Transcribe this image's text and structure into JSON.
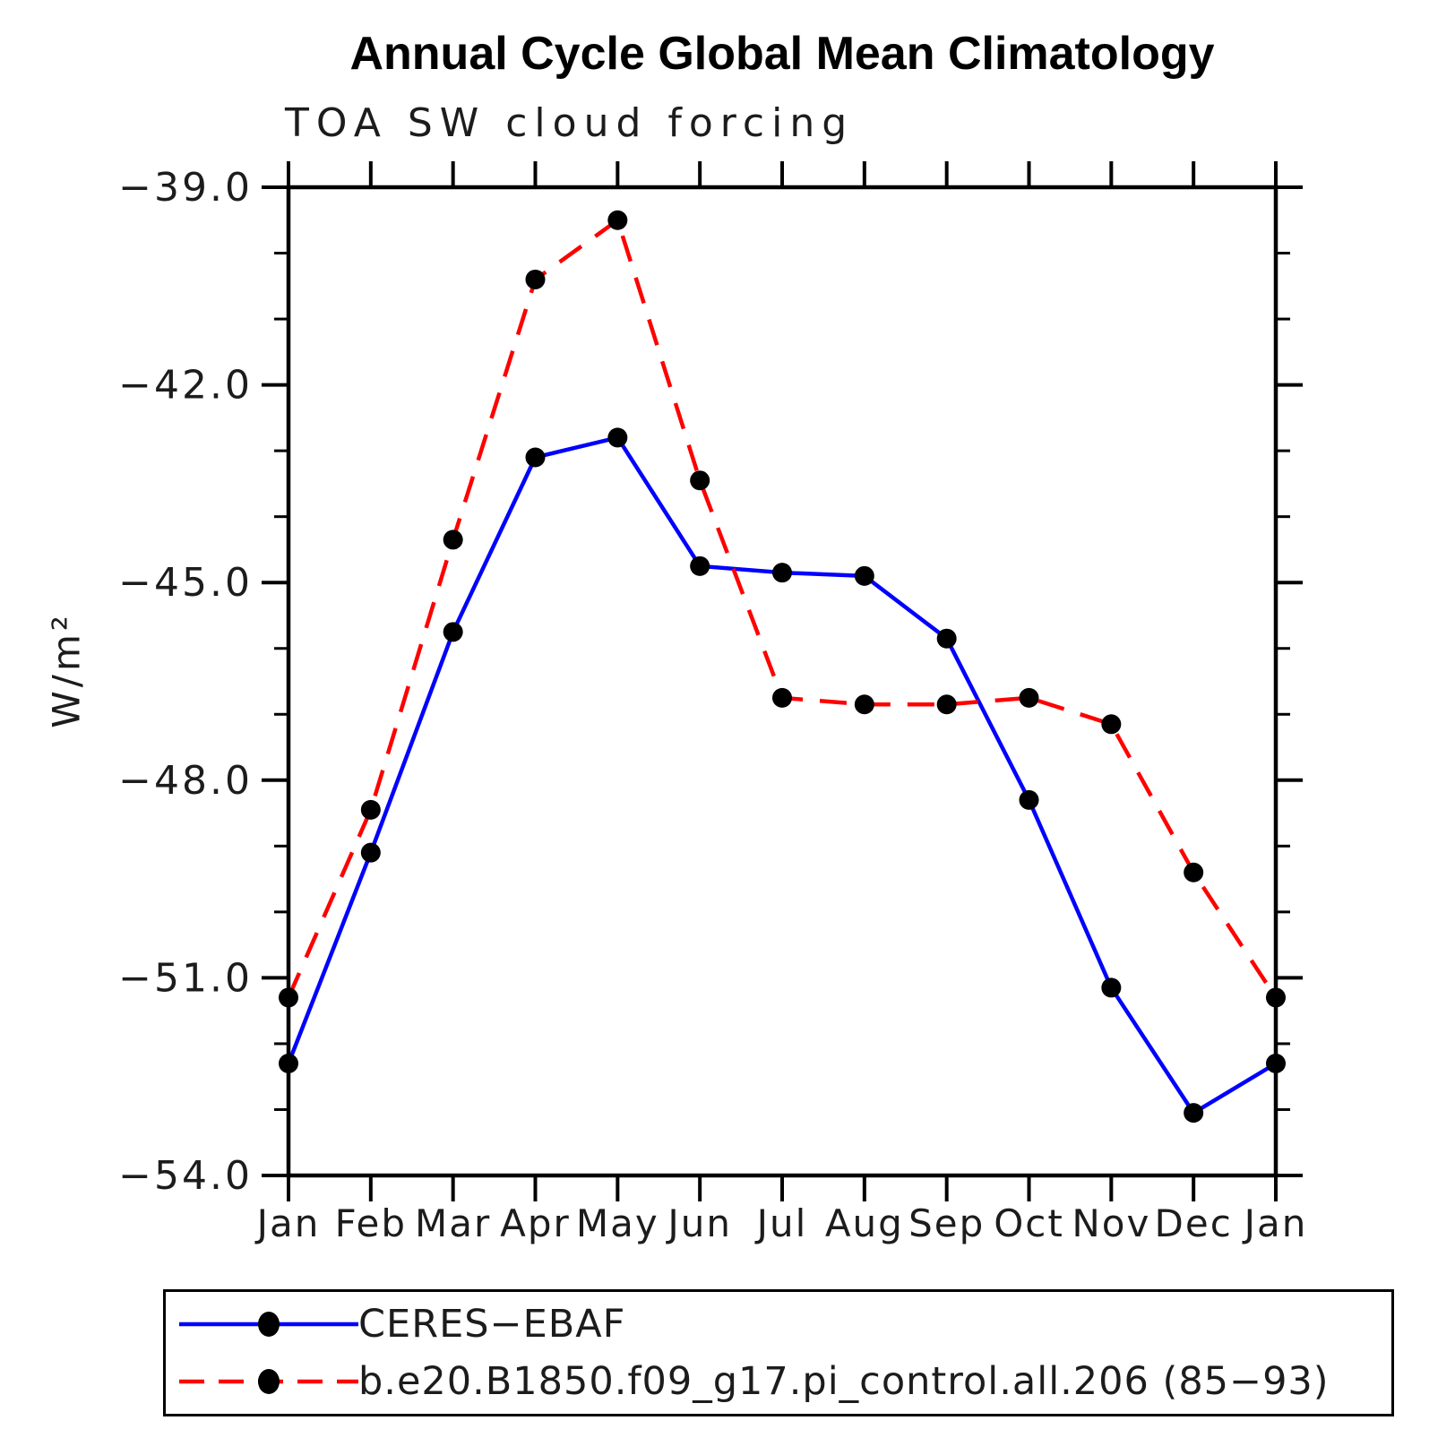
{
  "chart_data": {
    "type": "line",
    "title": "Annual Cycle Global Mean Climatology",
    "subtitle": "TOA SW cloud forcing",
    "ylabel": "W/m²",
    "xlabel": "",
    "categories": [
      "Jan",
      "Feb",
      "Mar",
      "Apr",
      "May",
      "Jun",
      "Jul",
      "Aug",
      "Sep",
      "Oct",
      "Nov",
      "Dec",
      "Jan"
    ],
    "series": [
      {
        "name": "CERES−EBAF",
        "color": "#0000ff",
        "line_style": "solid",
        "marker": "circle",
        "marker_color": "#000000",
        "values": [
          -52.3,
          -49.1,
          -45.75,
          -43.1,
          -42.8,
          -44.75,
          -44.85,
          -44.9,
          -45.85,
          -48.3,
          -51.15,
          -53.05,
          -52.3
        ]
      },
      {
        "name": "b.e20.B1850.f09_g17.pi_control.all.206 (85−93)",
        "color": "#ff0000",
        "line_style": "dashed",
        "marker": "circle",
        "marker_color": "#000000",
        "values": [
          -51.3,
          -48.45,
          -44.35,
          -40.4,
          -39.5,
          -43.45,
          -46.75,
          -46.85,
          -46.85,
          -46.75,
          -47.15,
          -49.4,
          -51.3
        ]
      }
    ],
    "ylim": [
      -54.0,
      -39.0
    ],
    "yticks": [
      -39.0,
      -42.0,
      -45.0,
      -48.0,
      -51.0,
      -54.0
    ],
    "ytick_labels": [
      "−39.0",
      "−42.0",
      "−45.0",
      "−48.0",
      "−51.0",
      "−54.0"
    ],
    "minor_ytick_step": 1,
    "grid": false,
    "legend_position": "bottom-left",
    "axis_color": "#000000",
    "text_color": "#1c1c1c",
    "background_color": "#ffffff"
  }
}
